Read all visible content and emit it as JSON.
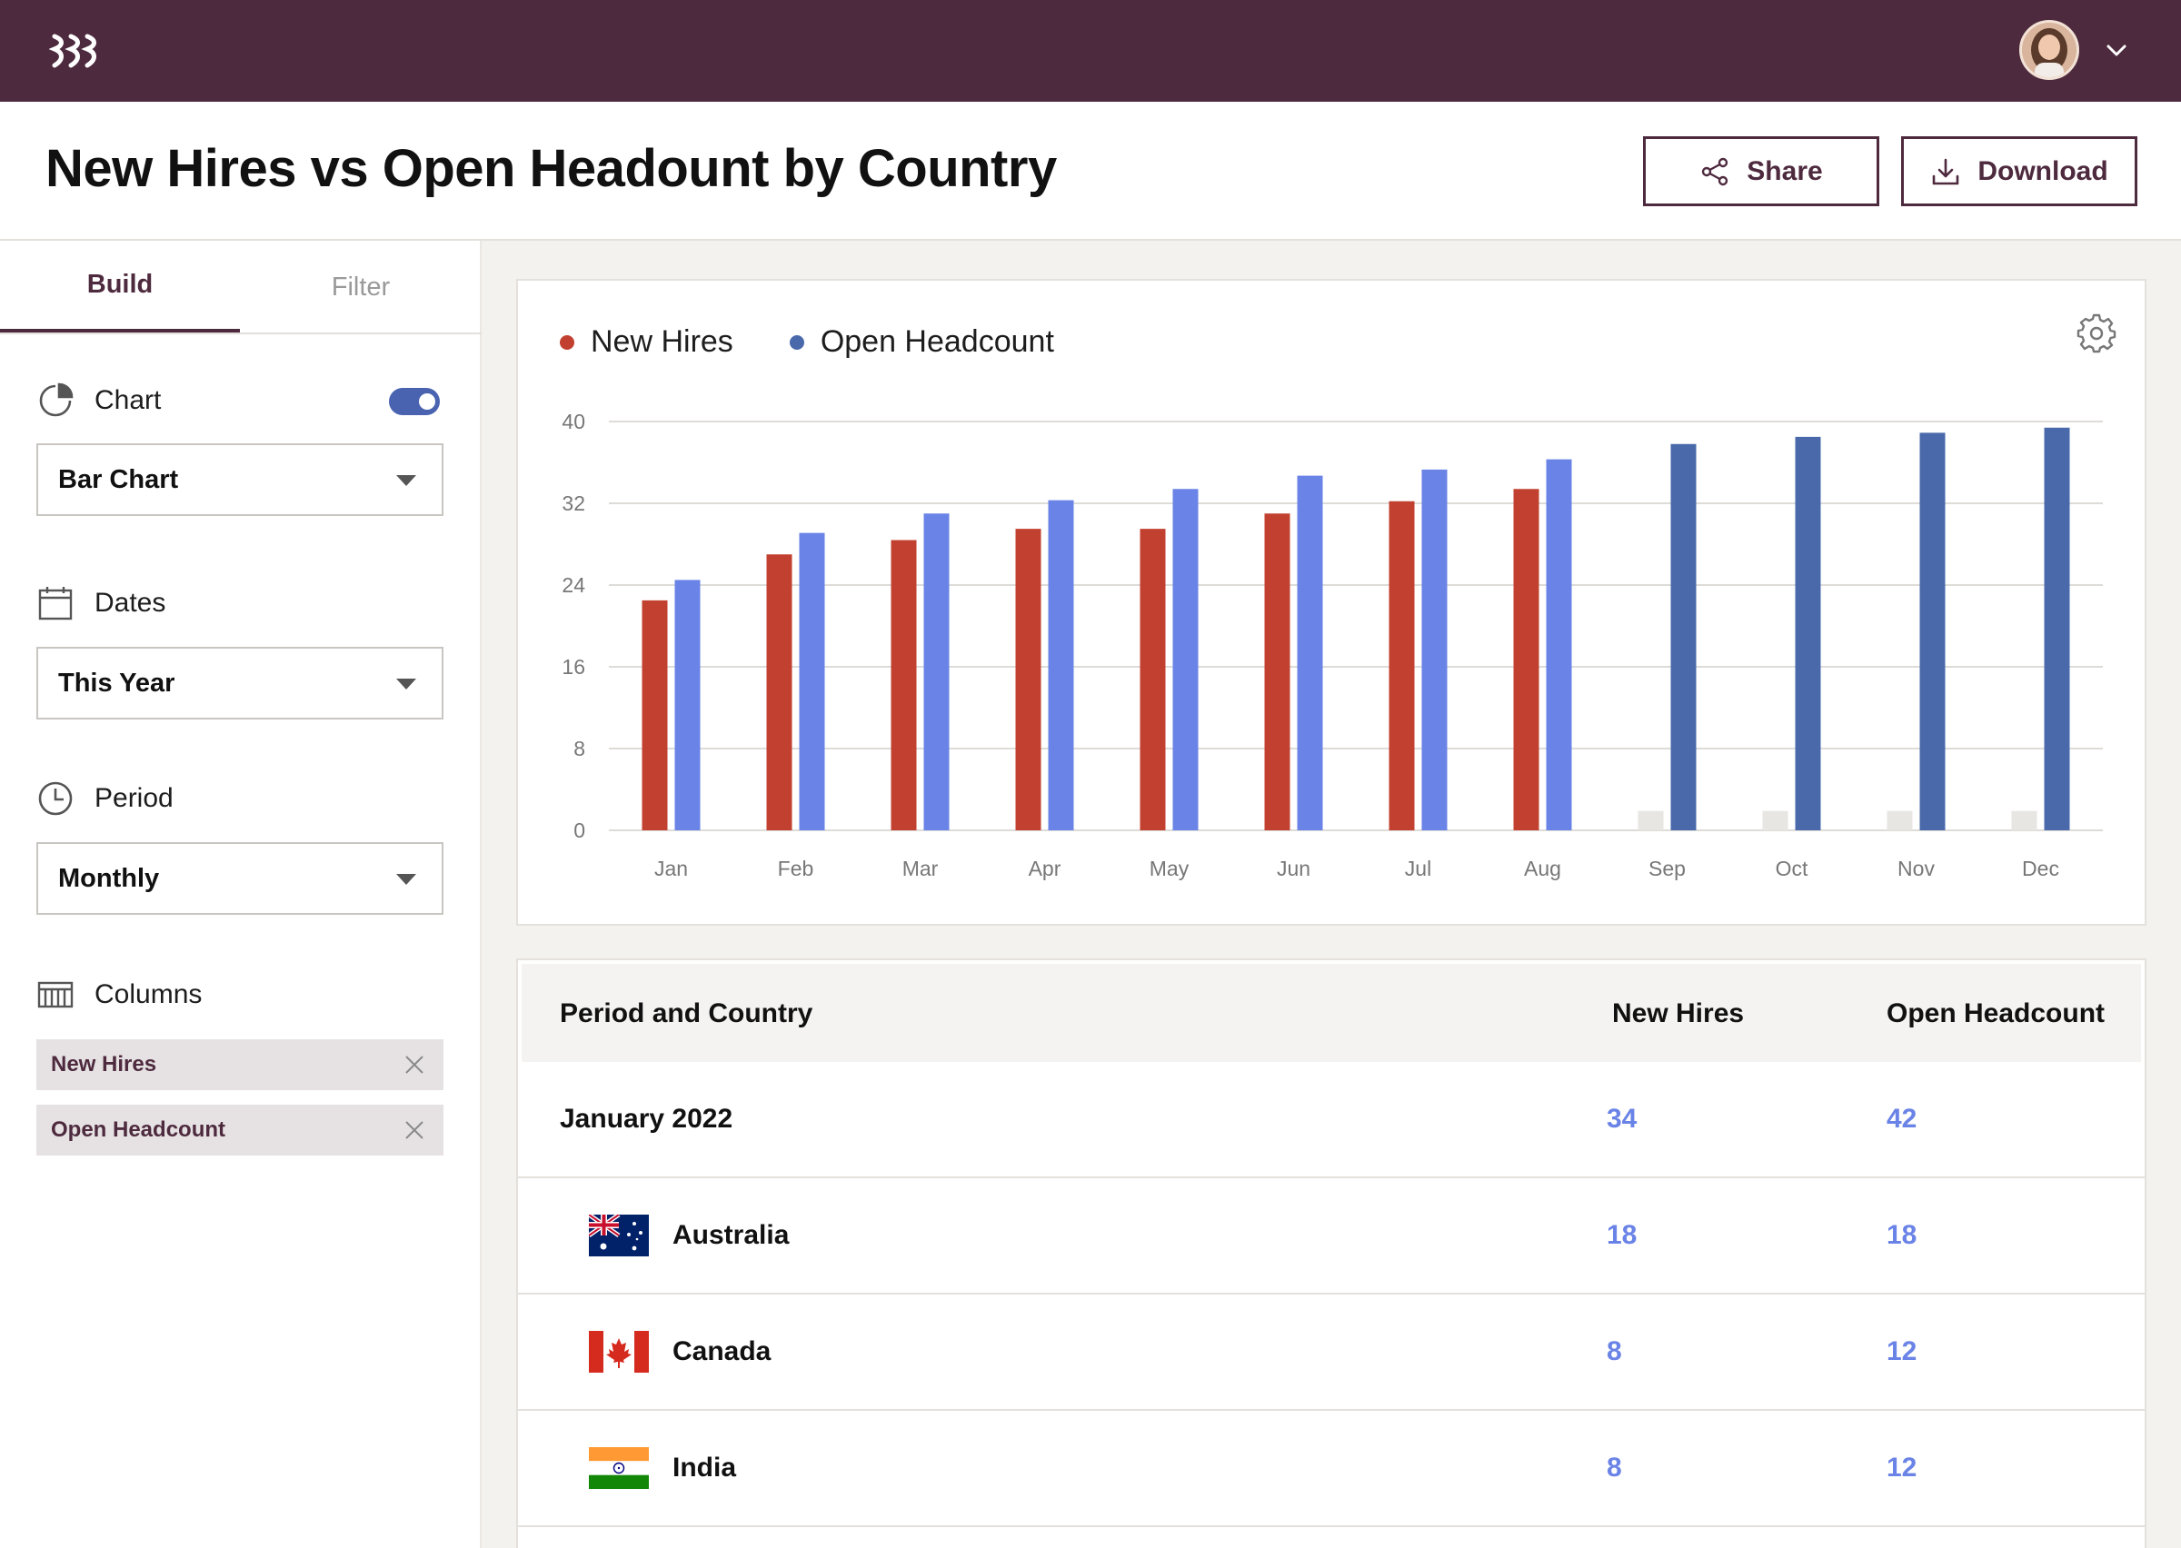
{
  "app": {
    "logo": "logo-icon",
    "avatar": "user-avatar"
  },
  "header": {
    "title": "New Hires vs Open Headount by Country",
    "share_label": "Share",
    "download_label": "Download"
  },
  "sidebar": {
    "tabs": [
      {
        "label": "Build",
        "active": true
      },
      {
        "label": "Filter",
        "active": false
      }
    ],
    "chart": {
      "label": "Chart",
      "toggle_on": true,
      "value": "Bar Chart"
    },
    "dates": {
      "label": "Dates",
      "value": "This Year"
    },
    "period": {
      "label": "Period",
      "value": "Monthly"
    },
    "columns": {
      "label": "Columns",
      "chips": [
        "New Hires",
        "Open Headcount"
      ]
    }
  },
  "colors": {
    "brand": "#4e2a3e",
    "new_hires": "#c2402f",
    "open_headcount": "#6a83e6",
    "open_headcount_forecast": "#4a69ab",
    "placeholder": "#e8e6e2",
    "value_text": "#6a83e6"
  },
  "chart_data": {
    "type": "bar",
    "legend": [
      "New Hires",
      "Open Headcount"
    ],
    "categories": [
      "Jan",
      "Feb",
      "Mar",
      "Apr",
      "May",
      "Jun",
      "Jul",
      "Aug",
      "Sep",
      "Oct",
      "Nov",
      "Dec"
    ],
    "series": [
      {
        "name": "New Hires",
        "values": [
          22.5,
          27,
          28.4,
          29.5,
          29.5,
          31,
          32.2,
          33.4,
          null,
          null,
          null,
          null
        ]
      },
      {
        "name": "Open Headcount",
        "values": [
          24.5,
          29.1,
          31,
          32.3,
          33.4,
          34.7,
          35.3,
          36.3,
          37.8,
          38.5,
          38.9,
          39.4
        ]
      }
    ],
    "placeholder_values": [
      0,
      0,
      0,
      0,
      0,
      0,
      0,
      0,
      1.9,
      1.9,
      1.9,
      1.9
    ],
    "ylim": [
      0,
      40
    ],
    "yticks": [
      0,
      8,
      16,
      24,
      32,
      40
    ],
    "grid": true,
    "legend_position": "top-left"
  },
  "table": {
    "headers": [
      "Period and Country",
      "New Hires",
      "Open Headcount"
    ],
    "rows": [
      {
        "label": "January 2022",
        "new_hires": "34",
        "open_headcount": "42",
        "flag": null
      },
      {
        "label": "Australia",
        "new_hires": "18",
        "open_headcount": "18",
        "flag": "australia-flag-icon"
      },
      {
        "label": "Canada",
        "new_hires": "8",
        "open_headcount": "12",
        "flag": "canada-flag-icon"
      },
      {
        "label": "India",
        "new_hires": "8",
        "open_headcount": "12",
        "flag": "india-flag-icon"
      }
    ]
  }
}
